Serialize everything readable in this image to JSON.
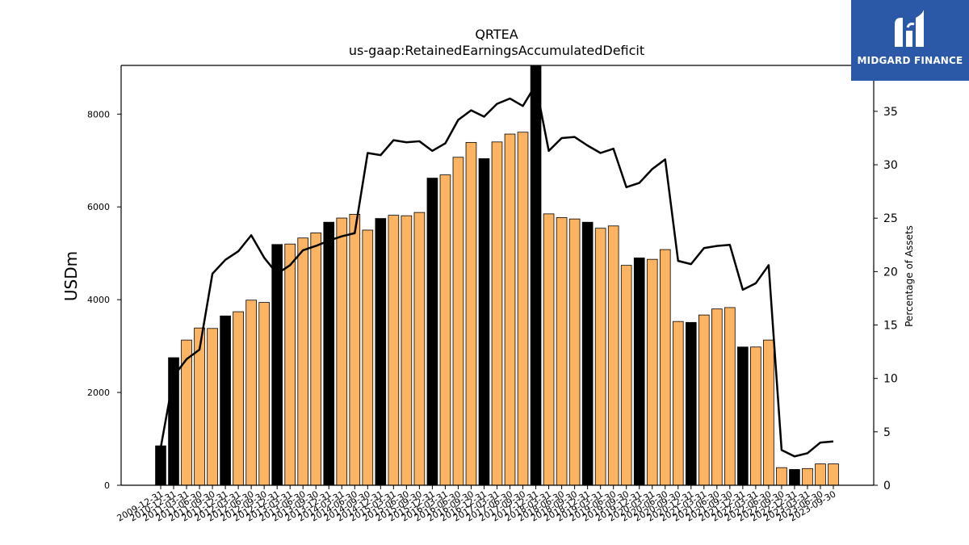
{
  "chart_data": {
    "type": "bar",
    "title": "QRTEA",
    "subtitle": "us-gaap:RetainedEarningsAccumulatedDeficit",
    "ylabel": "USDm",
    "y2label": "Percentage of Assets",
    "ylim": [
      0,
      9050
    ],
    "y2lim": [
      0,
      39.3
    ],
    "yticks": [
      0,
      2000,
      4000,
      6000,
      8000
    ],
    "y2ticks": [
      0,
      5,
      10,
      15,
      20,
      25,
      30,
      35
    ],
    "grid": false,
    "categories": [
      "2009-12-31",
      "2010-12-31",
      "2011-03-31",
      "2011-06-30",
      "2011-09-30",
      "2011-12-31",
      "2012-03-31",
      "2012-06-30",
      "2012-09-30",
      "2012-12-31",
      "2013-03-31",
      "2013-06-30",
      "2013-09-30",
      "2013-12-31",
      "2014-03-31",
      "2014-06-30",
      "2014-09-30",
      "2014-12-31",
      "2015-03-31",
      "2015-06-30",
      "2015-09-30",
      "2015-12-31",
      "2016-03-31",
      "2016-06-30",
      "2016-09-30",
      "2016-12-31",
      "2017-03-31",
      "2017-06-30",
      "2017-09-30",
      "2017-12-31",
      "2018-03-31",
      "2018-06-30",
      "2018-09-30",
      "2018-12-31",
      "2019-03-31",
      "2019-06-30",
      "2019-09-30",
      "2019-12-31",
      "2020-03-31",
      "2020-06-30",
      "2020-09-30",
      "2020-12-31",
      "2021-03-31",
      "2021-06-30",
      "2021-09-30",
      "2021-12-31",
      "2022-03-31",
      "2022-06-30",
      "2022-09-30",
      "2022-12-31",
      "2023-03-31",
      "2023-06-30",
      "2023-09-30"
    ],
    "series": [
      {
        "type": "bar",
        "values": [
          850,
          2750,
          3130,
          3390,
          3380,
          3650,
          3740,
          3990,
          3940,
          5190,
          5200,
          5330,
          5440,
          5670,
          5760,
          5840,
          5500,
          5750,
          5820,
          5810,
          5880,
          6620,
          6690,
          7070,
          7390,
          7040,
          7400,
          7570,
          7610,
          9050,
          5850,
          5770,
          5740,
          5670,
          5540,
          5590,
          4740,
          4900,
          4870,
          5080,
          3530,
          3510,
          3670,
          3800,
          3830,
          2980,
          2980,
          3130,
          380,
          340,
          360,
          460,
          460
        ]
      },
      {
        "type": "line",
        "axis": "right",
        "values": [
          3.5,
          10.2,
          11.8,
          12.7,
          19.8,
          21.1,
          21.9,
          23.4,
          21.3,
          19.8,
          20.6,
          22.0,
          22.4,
          22.9,
          23.3,
          23.6,
          31.1,
          30.9,
          32.3,
          32.1,
          32.2,
          31.3,
          32.0,
          34.2,
          35.1,
          34.5,
          35.7,
          36.2,
          35.5,
          37.5,
          31.3,
          32.5,
          32.6,
          31.8,
          31.1,
          31.5,
          27.9,
          28.3,
          29.6,
          30.5,
          21.0,
          20.7,
          22.2,
          22.4,
          22.5,
          18.3,
          18.9,
          20.6,
          3.3,
          2.7,
          3.0,
          4.0,
          4.1
        ]
      }
    ],
    "colors": {
      "bar_primary": "#000000",
      "bar_secondary": "#fdb462",
      "line": "#000000"
    }
  },
  "branding": {
    "logo_text": "MIDGARD FINANCE",
    "logo_bg": "#2b59a8"
  }
}
